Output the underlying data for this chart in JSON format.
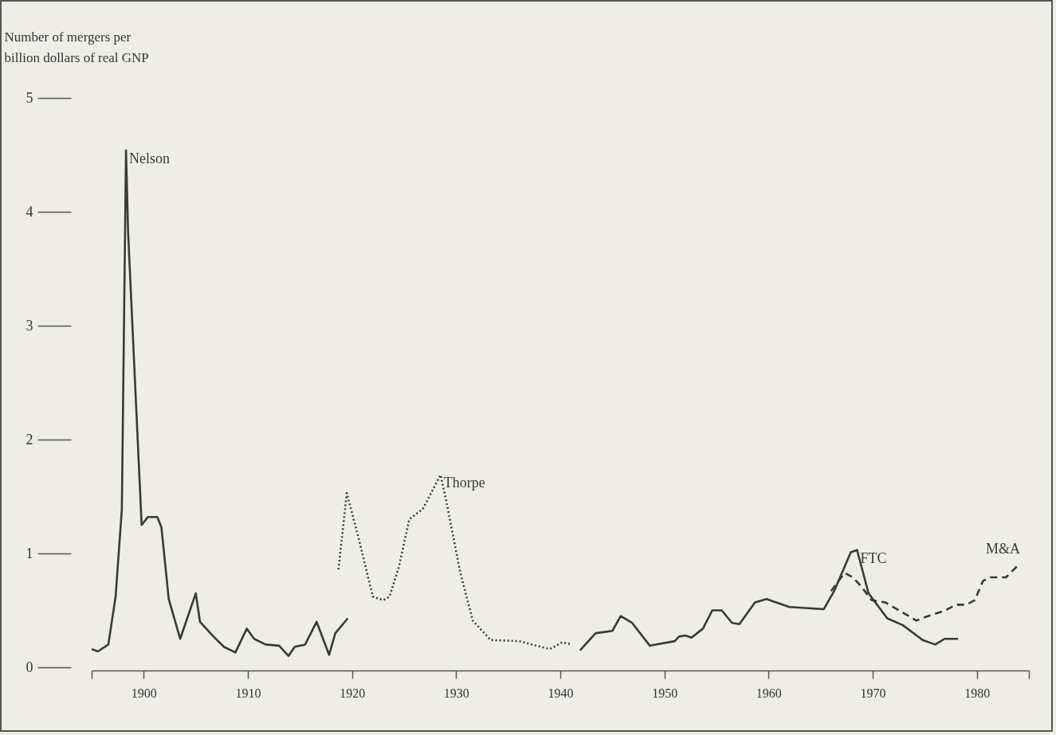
{
  "chart_data": {
    "type": "line",
    "ylabel": "Number of mergers per billion dollars of real GNP",
    "xlim": [
      1895,
      1985
    ],
    "ylim": [
      0,
      5
    ],
    "xticks": [
      {
        "value": 1895,
        "label": null
      },
      1900,
      1910,
      1920,
      1930,
      1940,
      1950,
      1960,
      1970,
      1980,
      {
        "value": 1985,
        "label": null
      }
    ],
    "yticks": [
      0,
      1,
      2,
      3,
      4,
      5
    ],
    "series": [
      {
        "name": "Nelson",
        "color": "#3a3a36",
        "line_style": "solid",
        "x": [
          1895.0,
          1895.6,
          1896.6,
          1897.3,
          1897.9,
          1898.3,
          1898.5,
          1899.8,
          1900.4,
          1901.3,
          1901.7,
          1902.4,
          1903.5,
          1905.0,
          1905.4,
          1906.7,
          1907.7,
          1908.8,
          1909.9,
          1910.6,
          1911.7,
          1913.0,
          1913.9,
          1914.5,
          1915.5,
          1916.6,
          1917.8,
          1918.4,
          1919.6
        ],
        "values": [
          0.16,
          0.14,
          0.2,
          0.62,
          1.39,
          4.54,
          3.82,
          1.25,
          1.32,
          1.32,
          1.23,
          0.6,
          0.25,
          0.65,
          0.4,
          0.27,
          0.18,
          0.13,
          0.34,
          0.25,
          0.2,
          0.19,
          0.1,
          0.18,
          0.2,
          0.4,
          0.11,
          0.3,
          0.43
        ]
      },
      {
        "name": "Thorpe",
        "color": "#3a3a36",
        "line_style": "dotted",
        "x": [
          1918.7,
          1919.5,
          1920.7,
          1922.0,
          1923.0,
          1923.6,
          1924.5,
          1925.5,
          1926.8,
          1928.5,
          1929.1,
          1930.4,
          1931.6,
          1933.3,
          1936.0,
          1937.3,
          1939.0,
          1940.2,
          1941.1
        ],
        "values": [
          0.86,
          1.53,
          1.11,
          0.62,
          0.59,
          0.62,
          0.88,
          1.3,
          1.39,
          1.69,
          1.44,
          0.83,
          0.41,
          0.24,
          0.23,
          0.2,
          0.16,
          0.22,
          0.2
        ]
      },
      {
        "name": "FTC",
        "color": "#3a3a36",
        "line_style": "solid",
        "x": [
          1941.9,
          1943.4,
          1945.0,
          1945.8,
          1946.9,
          1948.6,
          1951.0,
          1951.4,
          1952.0,
          1952.6,
          1953.7,
          1954.6,
          1955.5,
          1956.5,
          1957.2,
          1958.7,
          1959.8,
          1962.0,
          1965.3,
          1966.3,
          1967.9,
          1968.5,
          1969.6,
          1971.4,
          1972.9,
          1974.8,
          1976.0,
          1976.9,
          1978.2
        ],
        "values": [
          0.15,
          0.3,
          0.32,
          0.45,
          0.39,
          0.19,
          0.23,
          0.27,
          0.28,
          0.26,
          0.34,
          0.5,
          0.5,
          0.39,
          0.38,
          0.57,
          0.6,
          0.53,
          0.51,
          0.67,
          1.01,
          1.03,
          0.65,
          0.43,
          0.37,
          0.24,
          0.2,
          0.25,
          0.25
        ]
      },
      {
        "name": "M&A",
        "color": "#3a3a36",
        "line_style": "dashed",
        "x": [
          1966.0,
          1967.3,
          1968.1,
          1968.9,
          1969.9,
          1971.2,
          1972.9,
          1974.2,
          1975.0,
          1977.0,
          1978.0,
          1979.0,
          1979.8,
          1980.6,
          1981.3,
          1982.8,
          1984.0
        ],
        "values": [
          0.67,
          0.83,
          0.79,
          0.71,
          0.59,
          0.57,
          0.48,
          0.41,
          0.44,
          0.5,
          0.55,
          0.55,
          0.59,
          0.76,
          0.79,
          0.79,
          0.9
        ]
      }
    ]
  }
}
